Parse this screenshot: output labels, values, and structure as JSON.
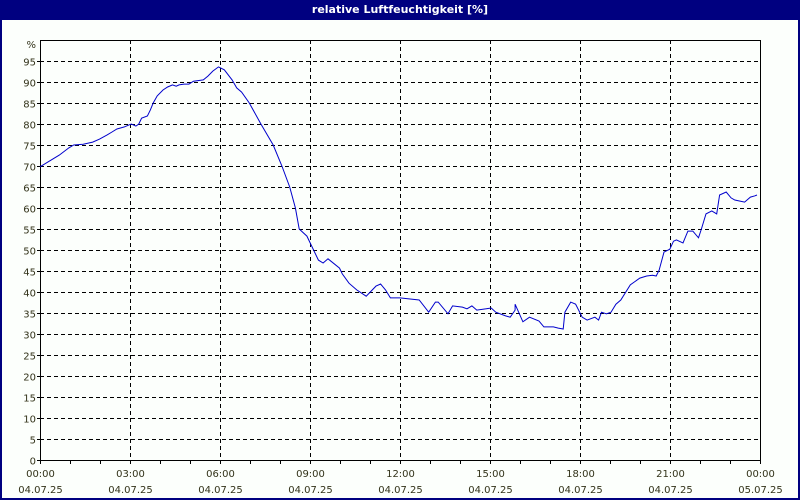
{
  "window": {
    "title": "relative Luftfeuchtigkeit [%]",
    "colors": {
      "frame": "#000080",
      "background": "#fcfffc",
      "grid": "#000000",
      "line": "#0000cc",
      "label": "#33331a"
    }
  },
  "chart_data": {
    "type": "line",
    "title": "relative Luftfeuchtigkeit [%]",
    "xlabel": "",
    "ylabel": "%",
    "ylim": [
      0,
      100
    ],
    "yticks": [
      0,
      5,
      10,
      15,
      20,
      25,
      30,
      35,
      40,
      45,
      50,
      55,
      60,
      65,
      70,
      75,
      80,
      85,
      90,
      95
    ],
    "xlim_hours": [
      0,
      24
    ],
    "xticks": [
      {
        "time": "00:00",
        "date": "04.07.25",
        "hour": 0
      },
      {
        "time": "03:00",
        "date": "04.07.25",
        "hour": 3
      },
      {
        "time": "06:00",
        "date": "04.07.25",
        "hour": 6
      },
      {
        "time": "09:00",
        "date": "04.07.25",
        "hour": 9
      },
      {
        "time": "12:00",
        "date": "04.07.25",
        "hour": 12
      },
      {
        "time": "15:00",
        "date": "04.07.25",
        "hour": 15
      },
      {
        "time": "18:00",
        "date": "04.07.25",
        "hour": 18
      },
      {
        "time": "21:00",
        "date": "04.07.25",
        "hour": 21
      },
      {
        "time": "00:00",
        "date": "05.07.25",
        "hour": 24
      }
    ],
    "grid": true,
    "legend": "none",
    "series": [
      {
        "name": "relative Luftfeuchtigkeit",
        "points": [
          [
            0.0,
            69.8
          ],
          [
            0.67,
            72.6
          ],
          [
            1.0,
            74.3
          ],
          [
            1.17,
            75.0
          ],
          [
            1.5,
            75.2
          ],
          [
            1.83,
            75.7
          ],
          [
            2.07,
            76.4
          ],
          [
            2.33,
            77.4
          ],
          [
            2.5,
            78.1
          ],
          [
            2.67,
            78.8
          ],
          [
            2.93,
            79.3
          ],
          [
            3.1,
            79.8
          ],
          [
            3.17,
            80.0
          ],
          [
            3.33,
            79.5
          ],
          [
            3.43,
            80.0
          ],
          [
            3.53,
            81.4
          ],
          [
            3.73,
            81.9
          ],
          [
            3.83,
            83.3
          ],
          [
            3.93,
            85.0
          ],
          [
            4.07,
            86.7
          ],
          [
            4.27,
            88.1
          ],
          [
            4.43,
            88.8
          ],
          [
            4.6,
            89.3
          ],
          [
            4.73,
            89.0
          ],
          [
            4.83,
            89.3
          ],
          [
            5.0,
            89.5
          ],
          [
            5.17,
            89.5
          ],
          [
            5.33,
            90.2
          ],
          [
            5.67,
            90.5
          ],
          [
            5.83,
            91.4
          ],
          [
            6.0,
            92.6
          ],
          [
            6.2,
            93.6
          ],
          [
            6.4,
            92.9
          ],
          [
            6.67,
            90.5
          ],
          [
            6.83,
            88.6
          ],
          [
            7.0,
            87.6
          ],
          [
            7.27,
            85.0
          ],
          [
            7.67,
            80.0
          ],
          [
            8.1,
            75.0
          ],
          [
            8.4,
            70.0
          ],
          [
            8.67,
            65.0
          ],
          [
            8.87,
            60.0
          ],
          [
            9.0,
            55.0
          ],
          [
            9.27,
            53.3
          ],
          [
            9.67,
            47.6
          ],
          [
            9.83,
            46.9
          ],
          [
            10.0,
            47.9
          ],
          [
            10.4,
            45.7
          ],
          [
            10.5,
            44.3
          ],
          [
            10.73,
            42.1
          ],
          [
            11.0,
            40.5
          ],
          [
            11.33,
            39.0
          ],
          [
            11.67,
            41.4
          ],
          [
            11.83,
            41.9
          ],
          [
            12.0,
            40.5
          ],
          [
            12.17,
            38.6
          ],
          [
            12.5,
            38.6
          ],
          [
            13.17,
            38.1
          ],
          [
            13.5,
            35.2
          ],
          [
            13.73,
            37.6
          ],
          [
            13.83,
            37.6
          ],
          [
            14.17,
            34.8
          ],
          [
            14.33,
            36.7
          ],
          [
            14.67,
            36.4
          ],
          [
            14.83,
            36.0
          ],
          [
            15.0,
            36.7
          ],
          [
            15.17,
            35.7
          ],
          [
            15.5,
            36.0
          ],
          [
            15.67,
            36.2
          ],
          [
            15.83,
            35.2
          ],
          [
            16.17,
            34.3
          ],
          [
            16.33,
            34.0
          ],
          [
            16.5,
            35.7
          ],
          [
            16.5,
            37.1
          ],
          [
            16.77,
            32.9
          ],
          [
            17.0,
            34.0
          ],
          [
            17.33,
            33.1
          ],
          [
            17.5,
            31.7
          ],
          [
            17.83,
            31.7
          ],
          [
            18.0,
            31.4
          ],
          [
            18.17,
            31.2
          ],
          [
            18.23,
            35.2
          ],
          [
            18.43,
            37.6
          ],
          [
            18.6,
            37.1
          ],
          [
            18.83,
            34.0
          ],
          [
            19.0,
            33.3
          ],
          [
            19.27,
            34.0
          ],
          [
            19.4,
            33.3
          ],
          [
            19.5,
            35.2
          ],
          [
            19.67,
            34.8
          ],
          [
            19.83,
            35.2
          ],
          [
            20.0,
            37.1
          ],
          [
            20.17,
            38.1
          ],
          [
            20.5,
            41.7
          ],
          [
            20.83,
            43.3
          ],
          [
            21.07,
            43.8
          ],
          [
            21.27,
            44.0
          ],
          [
            21.4,
            43.8
          ],
          [
            21.5,
            45.2
          ],
          [
            21.67,
            49.5
          ],
          [
            21.87,
            50.2
          ],
          [
            22.0,
            52.1
          ],
          [
            22.1,
            52.4
          ],
          [
            22.33,
            51.7
          ],
          [
            22.5,
            54.5
          ],
          [
            22.67,
            54.5
          ],
          [
            22.87,
            52.9
          ],
          [
            22.97,
            55.0
          ],
          [
            23.13,
            58.6
          ],
          [
            23.33,
            59.3
          ],
          [
            23.5,
            58.6
          ],
          [
            23.6,
            63.1
          ],
          [
            23.83,
            63.8
          ],
          [
            24.0,
            62.4
          ],
          [
            24.13,
            61.9
          ],
          [
            24.47,
            61.4
          ],
          [
            24.67,
            62.6
          ],
          [
            24.83,
            62.9
          ],
          [
            24.9,
            63.1
          ]
        ]
      }
    ]
  }
}
